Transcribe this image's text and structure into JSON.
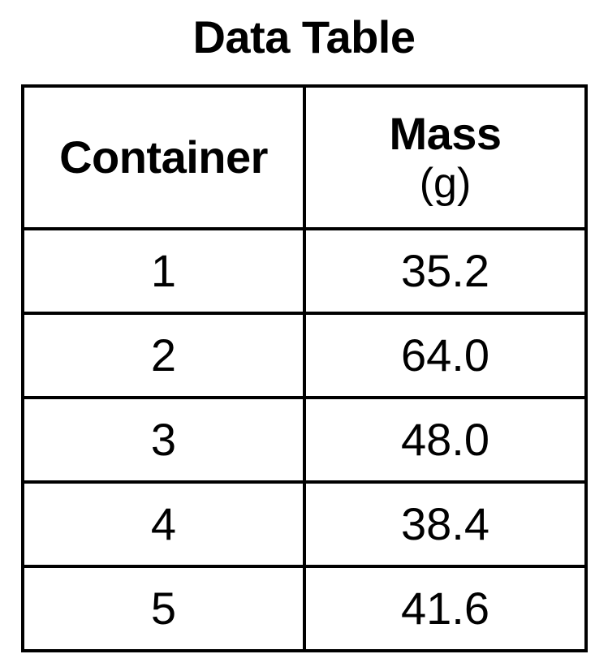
{
  "title": "Data Table",
  "columns": [
    {
      "label": "Container",
      "unit": ""
    },
    {
      "label": "Mass",
      "unit": "(g)"
    }
  ],
  "rows": [
    {
      "container": "1",
      "mass": "35.2"
    },
    {
      "container": "2",
      "mass": "64.0"
    },
    {
      "container": "3",
      "mass": "48.0"
    },
    {
      "container": "4",
      "mass": "38.4"
    },
    {
      "container": "5",
      "mass": "41.6"
    }
  ]
}
